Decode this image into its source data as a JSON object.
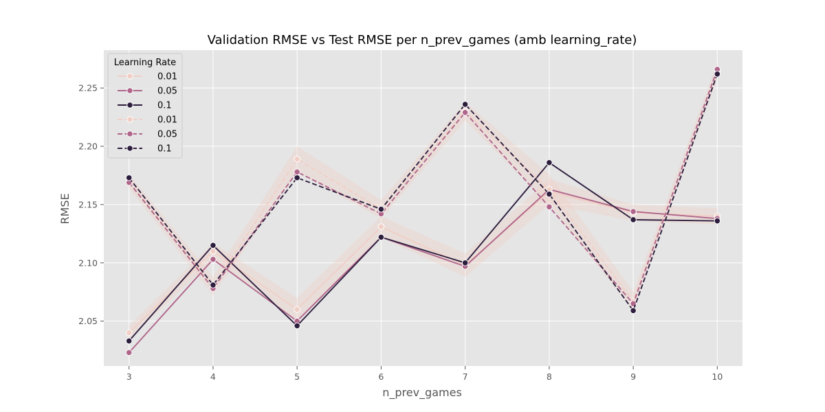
{
  "chart_data": {
    "type": "line",
    "title": "Validation RMSE vs Test RMSE per n_prev_games (amb learning_rate)",
    "xlabel": "n_prev_games",
    "ylabel": "RMSE",
    "x": [
      3,
      4,
      5,
      6,
      7,
      8,
      9,
      10
    ],
    "xlim": [
      2.7,
      10.3
    ],
    "ylim": [
      2.0115,
      2.2825
    ],
    "yticks": [
      2.05,
      2.1,
      2.15,
      2.2,
      2.25
    ],
    "ytick_labels": [
      "2.05",
      "2.10",
      "2.15",
      "2.20",
      "2.25"
    ],
    "xtick_labels": [
      "3",
      "4",
      "5",
      "6",
      "7",
      "8",
      "9",
      "10"
    ],
    "grid": true,
    "legend": {
      "title": "Learning Rate",
      "placement": "top-left"
    },
    "series": [
      {
        "name": "0.01",
        "dashed": false,
        "color": "#f0cfc6",
        "values": [
          2.04,
          2.11,
          2.06,
          2.131,
          2.098,
          2.161,
          2.143,
          2.14
        ],
        "ci": [
          [
            2.034,
            2.046
          ],
          [
            2.103,
            2.117
          ],
          [
            2.05,
            2.07
          ],
          [
            2.122,
            2.14
          ],
          [
            2.088,
            2.108
          ],
          [
            2.15,
            2.172
          ],
          [
            2.136,
            2.15
          ],
          [
            2.133,
            2.147
          ]
        ]
      },
      {
        "name": "0.05",
        "dashed": false,
        "color": "#b0668a",
        "values": [
          2.023,
          2.103,
          2.05,
          2.122,
          2.097,
          2.163,
          2.144,
          2.138
        ]
      },
      {
        "name": "0.1",
        "dashed": false,
        "color": "#2d1e3e",
        "values": [
          2.033,
          2.115,
          2.046,
          2.122,
          2.1,
          2.186,
          2.137,
          2.136
        ]
      },
      {
        "name": "0.01",
        "dashed": true,
        "color": "#f0cfc6",
        "values": [
          2.17,
          2.08,
          2.189,
          2.146,
          2.23,
          2.163,
          2.067,
          2.265
        ],
        "ci": [
          [
            2.164,
            2.176
          ],
          [
            2.072,
            2.088
          ],
          [
            2.178,
            2.2
          ],
          [
            2.138,
            2.154
          ],
          [
            2.222,
            2.238
          ],
          [
            2.15,
            2.176
          ],
          [
            2.059,
            2.075
          ],
          [
            2.258,
            2.272
          ]
        ]
      },
      {
        "name": "0.05",
        "dashed": true,
        "color": "#b0668a",
        "values": [
          2.169,
          2.078,
          2.178,
          2.142,
          2.229,
          2.148,
          2.065,
          2.266
        ]
      },
      {
        "name": "0.1",
        "dashed": true,
        "color": "#2d1e3e",
        "values": [
          2.173,
          2.081,
          2.173,
          2.146,
          2.236,
          2.159,
          2.059,
          2.262
        ]
      }
    ]
  },
  "colors": {
    "figure_background": "#ffffff",
    "plot_background": "#e5e5e5",
    "grid": "#ffffff",
    "ci_band": "#f0cfc6"
  }
}
